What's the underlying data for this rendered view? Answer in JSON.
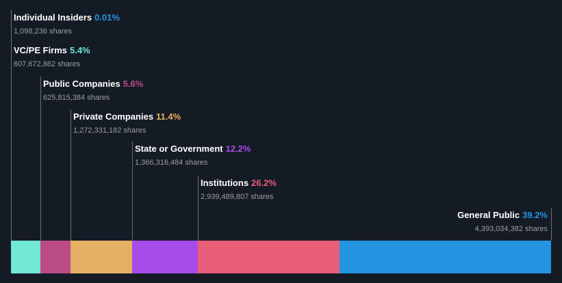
{
  "chart_data": {
    "type": "bar",
    "orientation": "stacked-horizontal",
    "title": "",
    "categories": [
      "Individual Insiders",
      "VC/PE Firms",
      "Public Companies",
      "Private Companies",
      "State or Government",
      "Institutions",
      "General Public"
    ],
    "values": [
      0.01,
      5.4,
      5.6,
      11.4,
      12.2,
      26.2,
      39.2
    ],
    "pct_labels": [
      "0.01%",
      "5.4%",
      "5.6%",
      "11.4%",
      "12.2%",
      "26.2%",
      "39.2%"
    ],
    "shares": [
      "1,098,236 shares",
      "607,672,862 shares",
      "625,815,384 shares",
      "1,272,331,182 shares",
      "1,366,316,484 shares",
      "2,939,489,807 shares",
      "4,393,034,382 shares"
    ],
    "colors": [
      "#2394df",
      "#71e7d6",
      "#bb4b87",
      "#e5b064",
      "#a64ce8",
      "#e85d77",
      "#2394df"
    ]
  }
}
